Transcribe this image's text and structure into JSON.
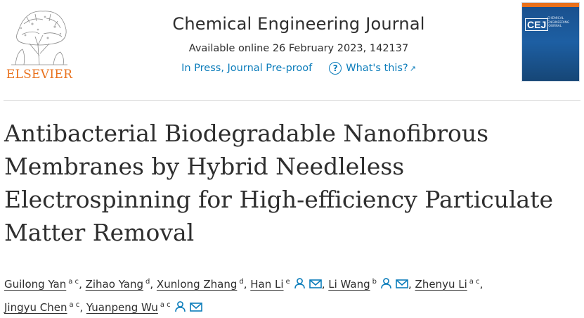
{
  "publisher": {
    "logo_word": "ELSEVIER"
  },
  "journal": {
    "title": "Chemical Engineering Journal",
    "available": "Available online 26 February 2023, 142137",
    "status": "In Press, Journal Pre-proof",
    "help_link": "What's this?",
    "cover_abbrev": "CEJ",
    "cover_subtitle": "CHEMICAL ENGINEERING JOURNAL"
  },
  "article": {
    "title": "Antibacterial Biodegradable Nanofibrous Membranes by Hybrid Needleless Electrospinning for High-efficiency Particulate Matter Removal"
  },
  "authors": [
    {
      "name": "Guilong Yan",
      "aff": "a c",
      "sep": ", "
    },
    {
      "name": "Zihao Yang",
      "aff": "d",
      "sep": ", "
    },
    {
      "name": "Xunlong Zhang",
      "aff": "d",
      "sep": ", "
    },
    {
      "name": "Han Li",
      "aff": "e",
      "sep": ", "
    },
    {
      "name": "Li Wang",
      "aff": "b",
      "sep": ", "
    },
    {
      "name": "Zhenyu Li",
      "aff": "a c",
      "sep": ","
    },
    {
      "name": "Jingyu Chen",
      "aff": "a c",
      "sep": ", "
    },
    {
      "name": "Yuanpeng Wu",
      "aff": "a c",
      "sep": ""
    }
  ],
  "colors": {
    "link": "#0c7dbb",
    "elsevier_orange": "#e9711c",
    "text": "#2e2e2e"
  },
  "icons": {
    "person": "person-icon",
    "mail": "envelope-icon",
    "help": "question-circle-icon",
    "external": "external-arrow-icon"
  }
}
